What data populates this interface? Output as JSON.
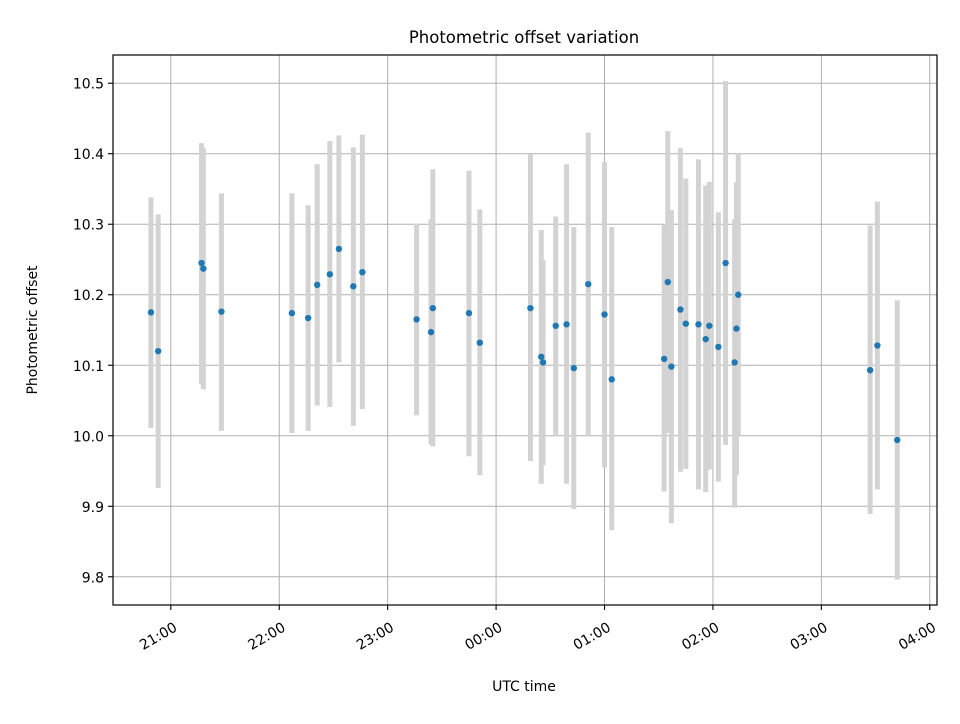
{
  "chart_data": {
    "type": "scatter",
    "title": "Photometric offset variation",
    "xlabel": "UTC time",
    "ylabel": "Photometric offset",
    "x_axis": {
      "tick_labels": [
        "21:00",
        "22:00",
        "23:00",
        "00:00",
        "01:00",
        "02:00",
        "03:00",
        "04:00"
      ],
      "range": [
        "20:28",
        "04:04"
      ]
    },
    "y_axis": {
      "range": [
        9.76,
        10.54
      ],
      "ticks": [
        9.8,
        9.9,
        10.0,
        10.1,
        10.2,
        10.3,
        10.4,
        10.5
      ],
      "tick_labels": [
        "9.8",
        "9.9",
        "10.0",
        "10.1",
        "10.2",
        "10.3",
        "10.4",
        "10.5"
      ]
    },
    "grid": true,
    "colors": {
      "marker": "#1f77b4",
      "errorbar": "#d3d3d3",
      "grid": "#b0b0b0"
    },
    "points": [
      {
        "x": "20:49",
        "y": 10.175,
        "ylo": 10.011,
        "yhi": 10.338
      },
      {
        "x": "20:53",
        "y": 10.12,
        "ylo": 9.926,
        "yhi": 10.314
      },
      {
        "x": "21:17",
        "y": 10.245,
        "ylo": 10.073,
        "yhi": 10.415
      },
      {
        "x": "21:18",
        "y": 10.237,
        "ylo": 10.066,
        "yhi": 10.408
      },
      {
        "x": "21:28",
        "y": 10.176,
        "ylo": 10.007,
        "yhi": 10.344
      },
      {
        "x": "22:07",
        "y": 10.174,
        "ylo": 10.004,
        "yhi": 10.344
      },
      {
        "x": "22:16",
        "y": 10.167,
        "ylo": 10.007,
        "yhi": 10.327
      },
      {
        "x": "22:21",
        "y": 10.214,
        "ylo": 10.043,
        "yhi": 10.385
      },
      {
        "x": "22:28",
        "y": 10.229,
        "ylo": 10.041,
        "yhi": 10.418
      },
      {
        "x": "22:33",
        "y": 10.265,
        "ylo": 10.104,
        "yhi": 10.426
      },
      {
        "x": "22:41",
        "y": 10.212,
        "ylo": 10.014,
        "yhi": 10.409
      },
      {
        "x": "22:46",
        "y": 10.232,
        "ylo": 10.038,
        "yhi": 10.427
      },
      {
        "x": "23:16",
        "y": 10.165,
        "ylo": 10.029,
        "yhi": 10.301
      },
      {
        "x": "23:24",
        "y": 10.147,
        "ylo": 9.988,
        "yhi": 10.307
      },
      {
        "x": "23:25",
        "y": 10.181,
        "ylo": 9.985,
        "yhi": 10.378
      },
      {
        "x": "23:45",
        "y": 10.174,
        "ylo": 9.971,
        "yhi": 10.376
      },
      {
        "x": "23:51",
        "y": 10.132,
        "ylo": 9.944,
        "yhi": 10.321
      },
      {
        "x": "00:19",
        "y": 10.181,
        "ylo": 9.964,
        "yhi": 10.399
      },
      {
        "x": "00:25",
        "y": 10.112,
        "ylo": 9.932,
        "yhi": 10.292
      },
      {
        "x": "00:26",
        "y": 10.104,
        "ylo": 9.958,
        "yhi": 10.249
      },
      {
        "x": "00:33",
        "y": 10.156,
        "ylo": 10.0,
        "yhi": 10.311
      },
      {
        "x": "00:39",
        "y": 10.158,
        "ylo": 9.932,
        "yhi": 10.385
      },
      {
        "x": "00:43",
        "y": 10.096,
        "ylo": 9.896,
        "yhi": 10.296
      },
      {
        "x": "00:51",
        "y": 10.215,
        "ylo": 10.0,
        "yhi": 10.43
      },
      {
        "x": "01:00",
        "y": 10.172,
        "ylo": 9.955,
        "yhi": 10.388
      },
      {
        "x": "01:04",
        "y": 10.08,
        "ylo": 9.866,
        "yhi": 10.296
      },
      {
        "x": "01:33",
        "y": 10.109,
        "ylo": 9.921,
        "yhi": 10.299
      },
      {
        "x": "01:35",
        "y": 10.218,
        "ylo": 10.004,
        "yhi": 10.432
      },
      {
        "x": "01:37",
        "y": 10.098,
        "ylo": 9.876,
        "yhi": 10.32
      },
      {
        "x": "01:42",
        "y": 10.179,
        "ylo": 9.949,
        "yhi": 10.408
      },
      {
        "x": "01:45",
        "y": 10.159,
        "ylo": 9.953,
        "yhi": 10.365
      },
      {
        "x": "01:52",
        "y": 10.158,
        "ylo": 9.924,
        "yhi": 10.392
      },
      {
        "x": "01:56",
        "y": 10.137,
        "ylo": 9.92,
        "yhi": 10.355
      },
      {
        "x": "01:58",
        "y": 10.156,
        "ylo": 9.952,
        "yhi": 10.36
      },
      {
        "x": "02:03",
        "y": 10.126,
        "ylo": 9.935,
        "yhi": 10.317
      },
      {
        "x": "02:07",
        "y": 10.245,
        "ylo": 9.987,
        "yhi": 10.503
      },
      {
        "x": "02:12",
        "y": 10.104,
        "ylo": 9.898,
        "yhi": 10.307
      },
      {
        "x": "02:13",
        "y": 10.152,
        "ylo": 9.944,
        "yhi": 10.359
      },
      {
        "x": "02:14",
        "y": 10.2,
        "ylo": 10.0,
        "yhi": 10.4
      },
      {
        "x": "03:27",
        "y": 10.093,
        "ylo": 9.889,
        "yhi": 10.298
      },
      {
        "x": "03:31",
        "y": 10.128,
        "ylo": 9.924,
        "yhi": 10.332
      },
      {
        "x": "03:42",
        "y": 9.994,
        "ylo": 9.796,
        "yhi": 10.192
      }
    ]
  }
}
